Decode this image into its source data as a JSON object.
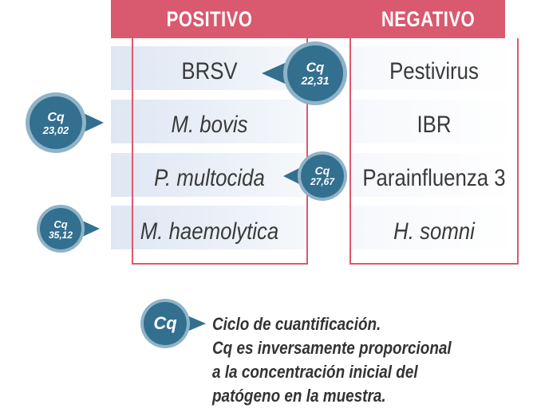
{
  "headers": {
    "positive": "POSITIVO",
    "negative": "NEGATIVO"
  },
  "positive": [
    {
      "name": "BRSV",
      "italic": false
    },
    {
      "name": "M. bovis",
      "italic": true
    },
    {
      "name": "P. multocida",
      "italic": true
    },
    {
      "name": "M. haemolytica",
      "italic": true
    }
  ],
  "negative": [
    {
      "name": "Pestivirus",
      "italic": false
    },
    {
      "name": "IBR",
      "italic": false
    },
    {
      "name": "Parainfluenza 3",
      "italic": false
    },
    {
      "name": "H. somni",
      "italic": true
    }
  ],
  "cq_values": [
    {
      "label": "Cq",
      "value": "22,31",
      "target": "BRSV"
    },
    {
      "label": "Cq",
      "value": "23,02",
      "target": "M. bovis"
    },
    {
      "label": "Cq",
      "value": "27,67",
      "target": "P. multocida"
    },
    {
      "label": "Cq",
      "value": "35,12",
      "target": "M. haemolytica"
    }
  ],
  "legend": {
    "badge": "Cq",
    "lines": [
      "Ciclo de cuantificación.",
      "Cq es inversamente proporcional",
      "a la concentración inicial del",
      "patógeno en la muestra."
    ]
  },
  "colors": {
    "header": "#d9596e",
    "bubble_fill": "#336f8f",
    "bubble_ring": "#8fb3c7",
    "row_band": "#dfe7f3"
  }
}
